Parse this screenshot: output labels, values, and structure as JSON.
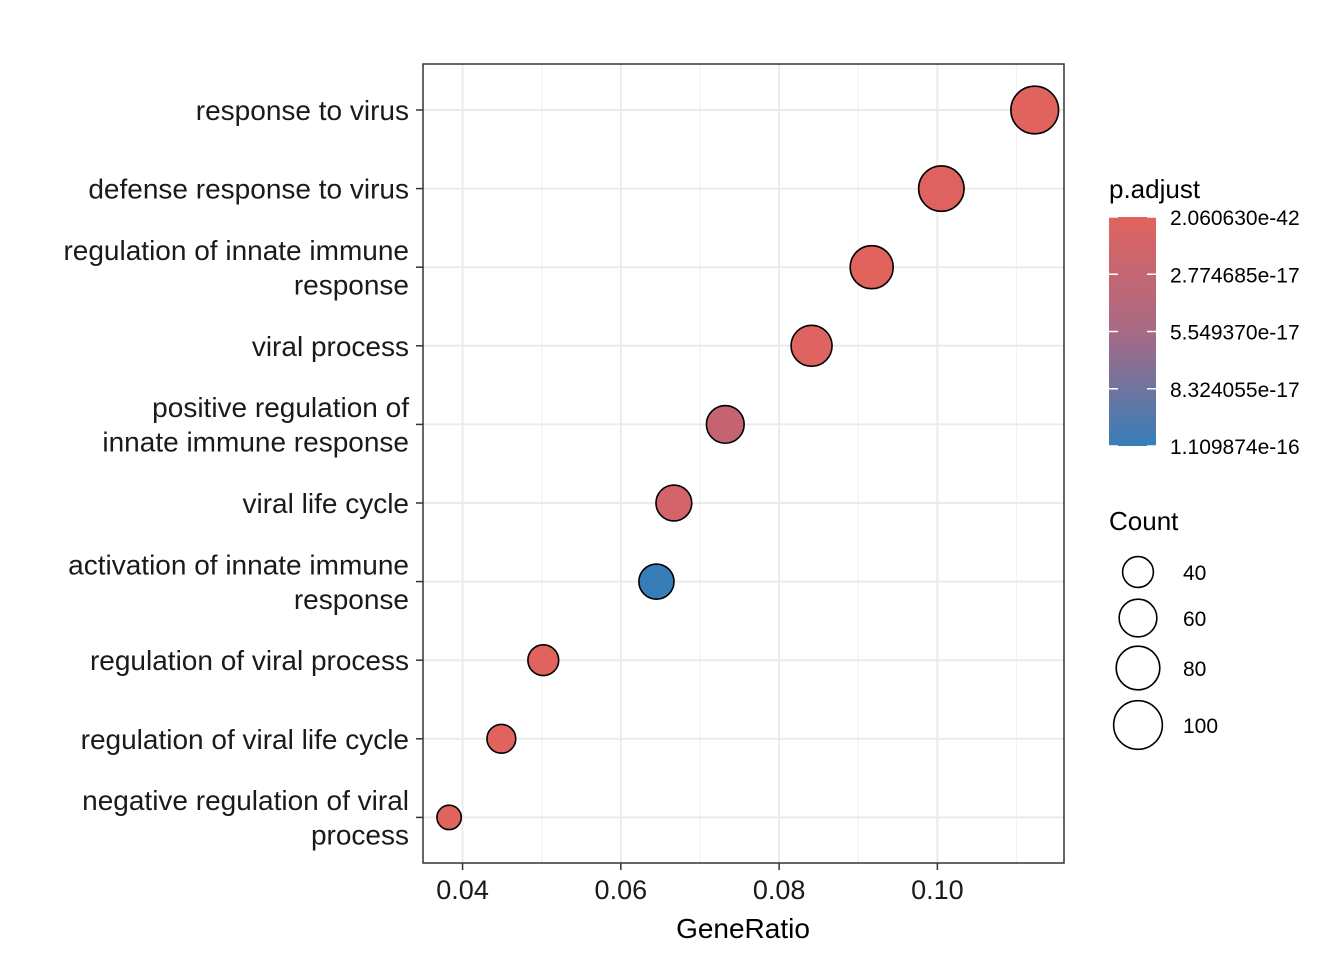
{
  "chart_data": {
    "type": "scatter",
    "title": "",
    "xlabel": "GeneRatio",
    "ylabel": "",
    "xlim": [
      0.035,
      0.116
    ],
    "x_ticks": [
      "0.04",
      "0.06",
      "0.08",
      "0.10"
    ],
    "x_tick_values": [
      0.04,
      0.06,
      0.08,
      0.1
    ],
    "grid": true,
    "categories": [
      [
        "response to virus"
      ],
      [
        "defense response to virus"
      ],
      [
        "regulation of innate immune",
        "response"
      ],
      [
        "viral process"
      ],
      [
        "positive regulation of",
        "innate immune response"
      ],
      [
        "viral life cycle"
      ],
      [
        "activation of innate immune",
        "response"
      ],
      [
        "regulation of viral process"
      ],
      [
        "regulation of viral life cycle"
      ],
      [
        "negative regulation of viral",
        "process"
      ]
    ],
    "points": [
      {
        "x": 0.1123,
        "count": 96,
        "color": "#e0635e"
      },
      {
        "x": 0.1005,
        "count": 87,
        "color": "#de6260"
      },
      {
        "x": 0.0917,
        "count": 78,
        "color": "#e0635e"
      },
      {
        "x": 0.0841,
        "count": 71,
        "color": "#df6360"
      },
      {
        "x": 0.0732,
        "count": 60,
        "color": "#c56471"
      },
      {
        "x": 0.0667,
        "count": 54,
        "color": "#d4646a"
      },
      {
        "x": 0.0645,
        "count": 52,
        "color": "#377eb8"
      },
      {
        "x": 0.0502,
        "count": 40,
        "color": "#e0635e"
      },
      {
        "x": 0.0449,
        "count": 35,
        "color": "#e0635e"
      },
      {
        "x": 0.0383,
        "count": 25,
        "color": "#e0635e"
      }
    ],
    "color_scale": {
      "title": "p.adjust",
      "low_color": "#377eb8",
      "high_color": "#e41a1c",
      "top_color": "#e0635e",
      "bottom_color": "#377eb8",
      "labels": [
        "2.060630e-42",
        "2.774685e-17",
        "5.549370e-17",
        "8.324055e-17",
        "1.109874e-16"
      ]
    },
    "size_scale": {
      "title": "Count",
      "labels": [
        "40",
        "60",
        "80",
        "100"
      ],
      "values": [
        40,
        60,
        80,
        100
      ]
    }
  }
}
